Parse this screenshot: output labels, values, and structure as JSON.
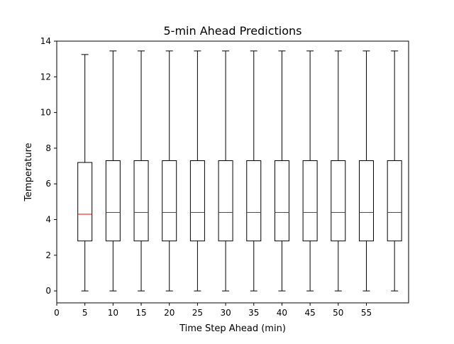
{
  "chart_data": {
    "type": "box",
    "title": "5-min Ahead Predictions",
    "xlabel": "Time Step Ahead (min)",
    "ylabel": "Temperature",
    "xlim": [
      0,
      62.5
    ],
    "ylim": [
      -0.67,
      14.0
    ],
    "xticks": [
      0,
      5,
      10,
      15,
      20,
      25,
      30,
      35,
      40,
      45,
      50,
      55
    ],
    "yticks": [
      0,
      2,
      4,
      6,
      8,
      10,
      12,
      14
    ],
    "grid": false,
    "median_color": "#ff0000",
    "box_color": "#000000",
    "boxes": [
      {
        "x": 5,
        "whislo": 0.0,
        "q1": 2.8,
        "med": 4.3,
        "q3": 7.2,
        "whishi": 13.25
      },
      {
        "x": 10,
        "whislo": 0.0,
        "q1": 2.8,
        "med": 4.4,
        "q3": 7.3,
        "whishi": 13.45
      },
      {
        "x": 15,
        "whislo": 0.0,
        "q1": 2.8,
        "med": 4.4,
        "q3": 7.3,
        "whishi": 13.45
      },
      {
        "x": 20,
        "whislo": 0.0,
        "q1": 2.8,
        "med": 4.4,
        "q3": 7.3,
        "whishi": 13.45
      },
      {
        "x": 25,
        "whislo": 0.0,
        "q1": 2.8,
        "med": 4.4,
        "q3": 7.3,
        "whishi": 13.45
      },
      {
        "x": 30,
        "whislo": 0.0,
        "q1": 2.8,
        "med": 4.4,
        "q3": 7.3,
        "whishi": 13.45
      },
      {
        "x": 35,
        "whislo": 0.0,
        "q1": 2.8,
        "med": 4.4,
        "q3": 7.3,
        "whishi": 13.45
      },
      {
        "x": 40,
        "whislo": 0.0,
        "q1": 2.8,
        "med": 4.4,
        "q3": 7.3,
        "whishi": 13.45
      },
      {
        "x": 45,
        "whislo": 0.0,
        "q1": 2.8,
        "med": 4.4,
        "q3": 7.3,
        "whishi": 13.45
      },
      {
        "x": 50,
        "whislo": 0.0,
        "q1": 2.8,
        "med": 4.4,
        "q3": 7.3,
        "whishi": 13.45
      },
      {
        "x": 55,
        "whislo": 0.0,
        "q1": 2.8,
        "med": 4.4,
        "q3": 7.3,
        "whishi": 13.45
      },
      {
        "x": 60,
        "whislo": 0.0,
        "q1": 2.8,
        "med": 4.4,
        "q3": 7.3,
        "whishi": 13.45
      }
    ]
  }
}
